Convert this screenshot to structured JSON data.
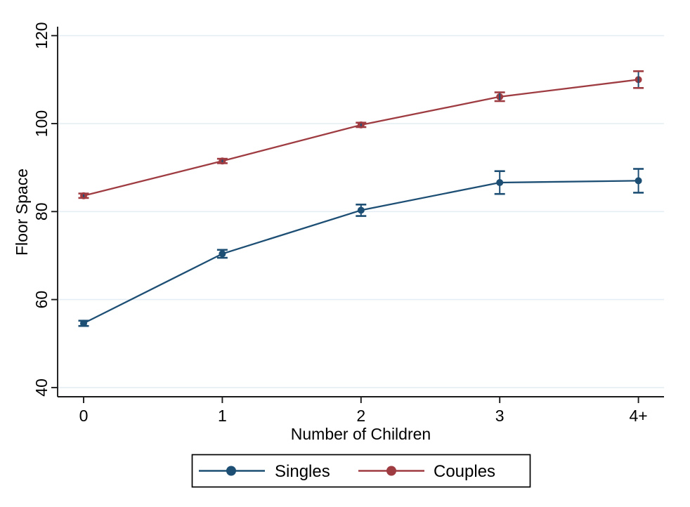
{
  "chart_data": {
    "type": "line",
    "title": "",
    "xlabel": "Number of Children",
    "ylabel": "Floor Space",
    "categories": [
      "0",
      "1",
      "2",
      "3",
      "4+"
    ],
    "yticks": [
      40,
      60,
      80,
      100,
      120
    ],
    "ylim": [
      40,
      120
    ],
    "grid": true,
    "legend_position": "bottom",
    "series": [
      {
        "name": "Singles",
        "color": "#1d4e74",
        "values": [
          54.6,
          70.4,
          80.3,
          86.6,
          87.0
        ],
        "ci_halfwidth": [
          0.6,
          0.9,
          1.3,
          2.6,
          2.7
        ]
      },
      {
        "name": "Couples",
        "color": "#9e3c42",
        "values": [
          83.6,
          91.5,
          99.7,
          106.1,
          110.0
        ],
        "ci_halfwidth": [
          0.5,
          0.5,
          0.5,
          1.0,
          1.9
        ]
      }
    ],
    "error_bar_line_color": "#1d4e74",
    "gridline_color": "#e4eef4",
    "axis_color": "#1a1a1a",
    "background_color": "#ffffff",
    "legend_border_color": "#000000"
  }
}
